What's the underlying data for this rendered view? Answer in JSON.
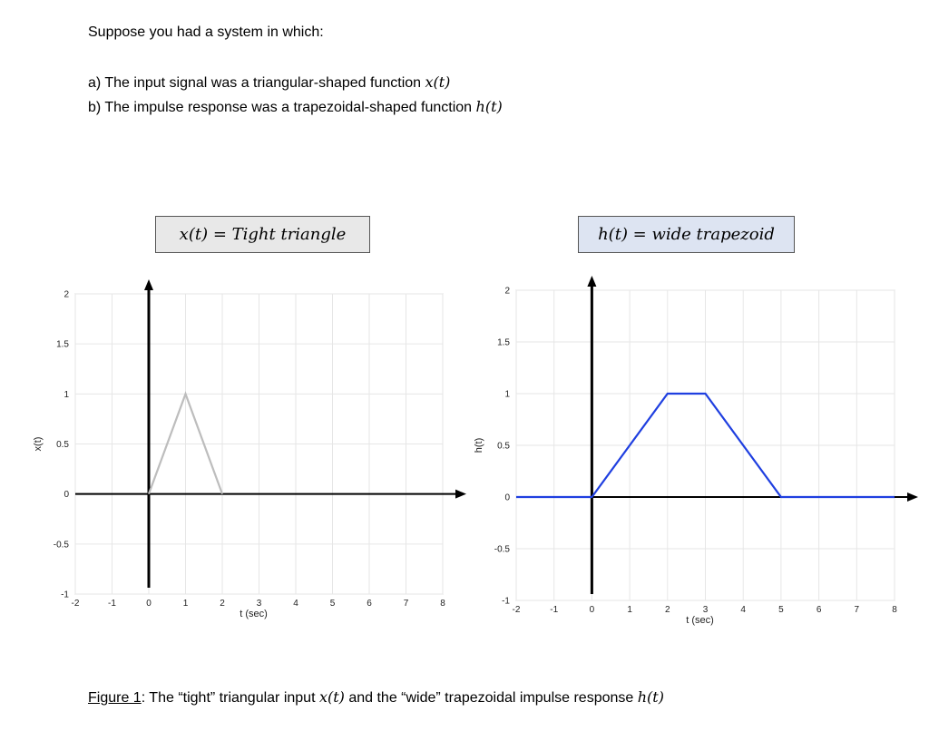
{
  "intro": {
    "line1": "Suppose you had a system in which:",
    "a_prefix": "a)  The input signal was a triangular-shaped function ",
    "a_math": "x(t)",
    "b_prefix": "b)  The impulse response was a trapezoidal-shaped function ",
    "b_math": "h(t)"
  },
  "caption": {
    "label": "Figure 1",
    "text": ":  The “tight” triangular input  ",
    "math1": "x(t)",
    "text2": "  and the “wide” trapezoidal impulse response ",
    "math2": "h(t)"
  },
  "chart_data": [
    {
      "type": "line",
      "title": "x(t)   =   Tight triangle",
      "title_bg": "#e8e8e8",
      "xlabel": "t (sec)",
      "ylabel": "x(t)",
      "xlim": [
        -2,
        8
      ],
      "ylim": [
        -1,
        2
      ],
      "xticks": [
        -2,
        -1,
        0,
        1,
        2,
        3,
        4,
        5,
        6,
        7,
        8
      ],
      "yticks": [
        -1,
        -0.5,
        0,
        0.5,
        1,
        1.5,
        2
      ],
      "grid": true,
      "series": [
        {
          "x": [
            0,
            1,
            2
          ],
          "y": [
            0,
            1,
            0
          ],
          "color": "#bdbdbd"
        }
      ]
    },
    {
      "type": "line",
      "title": "h(t)   =   wide trapezoid",
      "title_bg": "#dde4f2",
      "xlabel": "t (sec)",
      "ylabel": "h(t)",
      "xlim": [
        -2,
        8
      ],
      "ylim": [
        -1,
        2
      ],
      "xticks": [
        -2,
        -1,
        0,
        1,
        2,
        3,
        4,
        5,
        6,
        7,
        8
      ],
      "yticks": [
        -1,
        -0.5,
        0,
        0.5,
        1,
        1.5,
        2
      ],
      "grid": true,
      "series": [
        {
          "x": [
            -2,
            0,
            2,
            3,
            5,
            8
          ],
          "y": [
            0,
            0,
            1,
            1,
            0,
            0
          ],
          "color": "#1f3fe0"
        }
      ]
    }
  ]
}
